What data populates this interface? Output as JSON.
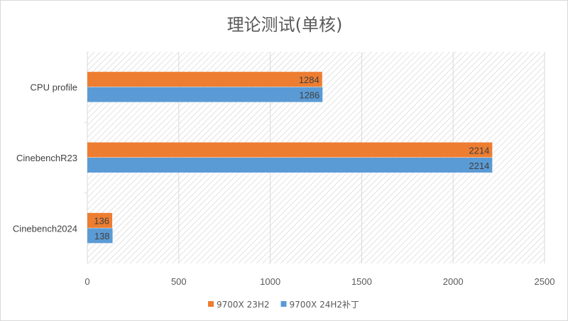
{
  "chart_data": {
    "type": "bar",
    "orientation": "horizontal",
    "title": "理论测试(单核)",
    "categories": [
      "CPU profile",
      "CinebenchR23",
      "Cinebench2024"
    ],
    "series": [
      {
        "name": "9700X 23H2",
        "color": "#ED7D31",
        "values": [
          1284,
          2214,
          136
        ]
      },
      {
        "name": "9700X 24H2补丁",
        "color": "#5B9BD5",
        "values": [
          1286,
          2214,
          138
        ]
      }
    ],
    "xlim": [
      0,
      2500
    ],
    "xticks": [
      0,
      500,
      1000,
      1500,
      2000,
      2500
    ],
    "xlabel": "",
    "ylabel": "",
    "grid": true,
    "legend": "bottom",
    "data_labels": true
  }
}
